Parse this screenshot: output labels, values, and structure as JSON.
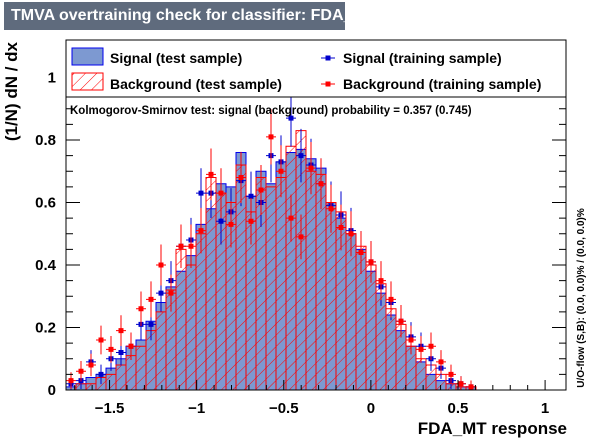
{
  "title": "TMVA overtraining check for classifier: FDA_MT",
  "colors": {
    "signal_fill": "#7d99d1",
    "signal_line": "#0000ee",
    "background_hatch": "#ff0000",
    "training_signal": "#0000cc",
    "training_background": "#ff0000",
    "title_bg": "#5f6b7d"
  },
  "chart_data": {
    "type": "bar",
    "xlabel": "FDA_MT response",
    "ylabel": "(1/N) dN / dx",
    "xlim": [
      -1.75,
      1.12
    ],
    "ylim": [
      0,
      1.12
    ],
    "x_ticks": [
      -1.5,
      -1,
      -0.5,
      0,
      0.5,
      1
    ],
    "x_tick_labels": [
      "−1.5",
      "−1",
      "−0.5",
      "0",
      "0.5",
      "1"
    ],
    "y_ticks": [
      0,
      0.2,
      0.4,
      0.6,
      0.8,
      1
    ],
    "y_tick_labels": [
      "0",
      "0.2",
      "0.4",
      "0.6",
      "0.8",
      "1"
    ],
    "bin_start": -1.75,
    "bin_width": 0.0574,
    "legend": {
      "signal_test": "Signal (test sample)",
      "background_test": "Background (test sample)",
      "signal_train": "Signal (training sample)",
      "background_train": "Background (training sample)"
    },
    "ks_text": "Kolmogorov-Smirnov test: signal (background) probability = 0.357 (0.745)",
    "overflow_text": "U/O-flow (S,B): (0.0, 0.0)% / (0.0, 0.0)%",
    "series": [
      {
        "name": "Signal (test sample)",
        "kind": "hist",
        "values": [
          0.01,
          0.02,
          0.04,
          0.05,
          0.07,
          0.1,
          0.14,
          0.16,
          0.22,
          0.28,
          0.33,
          0.38,
          0.43,
          0.53,
          0.58,
          0.66,
          0.65,
          0.76,
          0.62,
          0.7,
          0.66,
          0.73,
          0.76,
          0.77,
          0.74,
          0.71,
          0.6,
          0.55,
          0.5,
          0.45,
          0.38,
          0.31,
          0.24,
          0.19,
          0.14,
          0.09,
          0.05,
          0.03,
          0.02,
          0.01,
          0.01,
          0.0,
          0.0,
          0.0,
          0.0,
          0.0,
          0.0,
          0.0,
          0.0,
          0.0
        ]
      },
      {
        "name": "Background (test sample)",
        "kind": "hist",
        "values": [
          0.0,
          0.02,
          0.02,
          0.04,
          0.05,
          0.08,
          0.11,
          0.14,
          0.19,
          0.25,
          0.32,
          0.45,
          0.4,
          0.5,
          0.68,
          0.63,
          0.6,
          0.72,
          0.57,
          0.68,
          0.65,
          0.68,
          0.78,
          0.83,
          0.7,
          0.69,
          0.6,
          0.57,
          0.5,
          0.46,
          0.4,
          0.34,
          0.26,
          0.21,
          0.14,
          0.1,
          0.08,
          0.05,
          0.02,
          0.01,
          0.01,
          0.0,
          0.0,
          0.0,
          0.0,
          0.0,
          0.0,
          0.0,
          0.0,
          0.0
        ]
      },
      {
        "name": "Signal (training sample)",
        "kind": "points",
        "values": [
          0.02,
          0.03,
          0.09,
          0.05,
          0.1,
          0.12,
          0.14,
          0.21,
          0.21,
          0.31,
          0.35,
          0.46,
          0.48,
          0.63,
          0.63,
          0.54,
          0.57,
          0.67,
          0.62,
          0.6,
          0.75,
          0.73,
          0.87,
          0.75,
          0.72,
          0.66,
          0.59,
          0.56,
          0.51,
          0.44,
          0.41,
          0.33,
          0.28,
          0.22,
          0.17,
          0.14,
          0.1,
          0.07,
          0.03,
          0.02,
          0.01,
          0.0,
          0.0,
          0.0,
          0.0,
          0.0,
          0.0,
          0.0,
          0.0,
          0.0
        ]
      },
      {
        "name": "Background (training sample)",
        "kind": "points",
        "values": [
          0.03,
          0.06,
          0.08,
          0.16,
          0.13,
          0.19,
          0.14,
          0.26,
          0.29,
          0.4,
          0.31,
          0.46,
          0.46,
          0.51,
          0.69,
          0.63,
          0.53,
          0.68,
          0.54,
          0.64,
          0.81,
          0.7,
          0.55,
          0.49,
          0.71,
          0.66,
          0.58,
          0.52,
          0.5,
          0.44,
          0.41,
          0.35,
          0.29,
          0.22,
          0.16,
          0.13,
          0.14,
          0.09,
          0.05,
          0.02,
          0.01,
          0.0,
          0.0,
          0.0,
          0.0,
          0.0,
          0.0,
          0.0,
          0.0,
          0.0
        ]
      }
    ]
  }
}
